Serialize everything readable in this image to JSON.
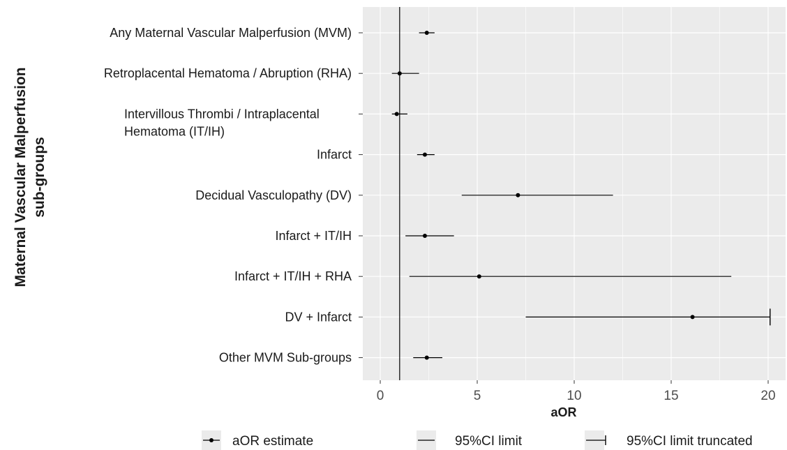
{
  "chart_data": {
    "type": "forest",
    "xlabel": "aOR",
    "ylabel_lines": [
      "Maternal Vascular Malperfusion",
      "sub-groups"
    ],
    "xlim": [
      -0.9,
      20.9
    ],
    "xticks": [
      0,
      5,
      10,
      15,
      20
    ],
    "reference_line": 1,
    "grid": true,
    "legend_position": "bottom",
    "legend": [
      "aOR estimate",
      "95%CI limit",
      "95%CI limit truncated"
    ],
    "categories": [
      {
        "label_lines": [
          "Any Maternal Vascular Malperfusion (MVM)"
        ],
        "estimate": 2.4,
        "lower": 2.0,
        "upper": 2.8,
        "truncated": false
      },
      {
        "label_lines": [
          "Retroplacental Hematoma / Abruption (RHA)"
        ],
        "estimate": 1.0,
        "lower": 0.6,
        "upper": 2.0,
        "truncated": false
      },
      {
        "label_lines": [
          "Intervillous Thrombi / Intraplacental",
          "Hematoma (IT/IH)"
        ],
        "estimate": 0.85,
        "lower": 0.6,
        "upper": 1.4,
        "truncated": false
      },
      {
        "label_lines": [
          "Infarct"
        ],
        "estimate": 2.3,
        "lower": 1.9,
        "upper": 2.8,
        "truncated": false
      },
      {
        "label_lines": [
          "Decidual Vasculopathy (DV)"
        ],
        "estimate": 7.1,
        "lower": 4.2,
        "upper": 12.0,
        "truncated": false
      },
      {
        "label_lines": [
          "Infarct + IT/IH"
        ],
        "estimate": 2.3,
        "lower": 1.3,
        "upper": 3.8,
        "truncated": false
      },
      {
        "label_lines": [
          "Infarct + IT/IH + RHA"
        ],
        "estimate": 5.1,
        "lower": 1.5,
        "upper": 18.1,
        "truncated": false
      },
      {
        "label_lines": [
          "DV + Infarct"
        ],
        "estimate": 16.1,
        "lower": 7.5,
        "upper": 20.1,
        "truncated": true
      },
      {
        "label_lines": [
          "Other MVM Sub-groups"
        ],
        "estimate": 2.4,
        "lower": 1.7,
        "upper": 3.2,
        "truncated": false
      }
    ]
  }
}
